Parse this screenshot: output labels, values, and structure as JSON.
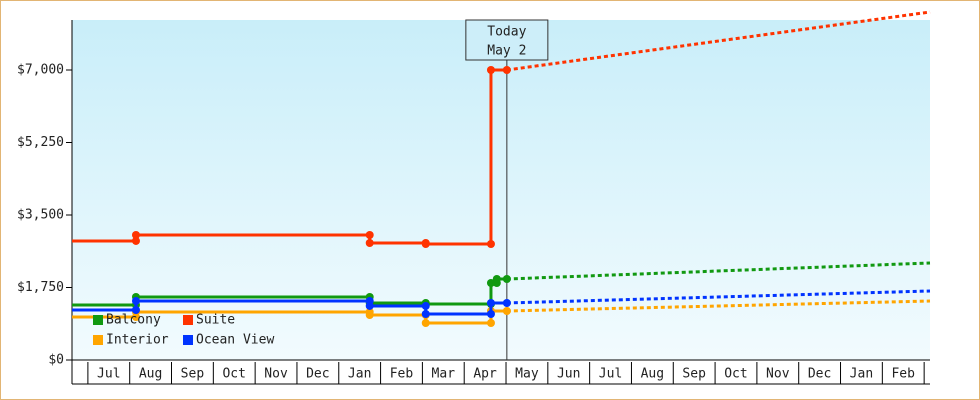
{
  "chart_data": {
    "type": "step-line",
    "xticks": [
      {
        "value": 0,
        "label": "Jul"
      },
      {
        "value": 1,
        "label": "Aug"
      },
      {
        "value": 2,
        "label": "Sep"
      },
      {
        "value": 3,
        "label": "Oct"
      },
      {
        "value": 4,
        "label": "Nov"
      },
      {
        "value": 5,
        "label": "Dec"
      },
      {
        "value": 6,
        "label": "Jan"
      },
      {
        "value": 7,
        "label": "Feb"
      },
      {
        "value": 8,
        "label": "Mar"
      },
      {
        "value": 9,
        "label": "Apr"
      },
      {
        "value": 10,
        "label": "May"
      },
      {
        "value": 11,
        "label": "Jun"
      },
      {
        "value": 12,
        "label": "Jul"
      },
      {
        "value": 13,
        "label": "Aug"
      },
      {
        "value": 14,
        "label": "Sep"
      },
      {
        "value": 15,
        "label": "Oct"
      },
      {
        "value": 16,
        "label": "Nov"
      },
      {
        "value": 17,
        "label": "Dec"
      },
      {
        "value": 18,
        "label": "Jan"
      },
      {
        "value": 19,
        "label": "Feb"
      }
    ],
    "xlim": [
      -0.88,
      19.64
    ],
    "ylim": [
      0,
      8207
    ],
    "yticks": [
      {
        "value": 0,
        "label": "$0"
      },
      {
        "value": 1750,
        "label": "$1,750"
      },
      {
        "value": 3500,
        "label": "$3,500"
      },
      {
        "value": 5250,
        "label": "$5,250"
      },
      {
        "value": 7000,
        "label": "$7,000"
      }
    ],
    "legend": "lower left",
    "annotation": {
      "lines": [
        "Today",
        "May 2"
      ],
      "x": 9.52
    },
    "series": [
      {
        "name": "Balcony",
        "color": "#119911",
        "x": [
          -0.88,
          0.65,
          0.65,
          6.24,
          6.24,
          7.58,
          7.58,
          9.14,
          9.14,
          9.28,
          9.28,
          9.52
        ],
        "values": [
          1328,
          1328,
          1521,
          1521,
          1376,
          1376,
          1352,
          1352,
          1859,
          1859,
          1955,
          1955
        ],
        "projection": {
          "x": [
            9.52,
            19.64
          ],
          "values": [
            1955,
            2342
          ]
        }
      },
      {
        "name": "Suite",
        "color": "#ff3300",
        "x": [
          -0.88,
          0.65,
          0.65,
          6.24,
          6.24,
          7.58,
          7.58,
          9.14,
          9.14,
          9.52
        ],
        "values": [
          2873,
          2873,
          3017,
          3017,
          2824,
          2824,
          2800,
          2800,
          7000,
          7000
        ],
        "projection": {
          "x": [
            9.52,
            19.64
          ],
          "values": [
            7000,
            8400
          ]
        }
      },
      {
        "name": "Interior",
        "color": "#ffa500",
        "x": [
          -0.88,
          0.65,
          0.65,
          6.24,
          6.24,
          7.58,
          7.58,
          9.14,
          9.14,
          9.52
        ],
        "values": [
          1038,
          1038,
          1159,
          1159,
          1086,
          1086,
          893,
          893,
          1183,
          1183
        ],
        "projection": {
          "x": [
            9.52,
            19.64
          ],
          "values": [
            1183,
            1424
          ]
        }
      },
      {
        "name": "Ocean View",
        "color": "#0033ff",
        "x": [
          -0.88,
          0.65,
          0.65,
          6.24,
          6.24,
          7.58,
          7.58,
          9.14,
          9.14,
          9.52
        ],
        "values": [
          1207,
          1207,
          1424,
          1424,
          1304,
          1304,
          1110,
          1110,
          1376,
          1376
        ],
        "projection": {
          "x": [
            9.52,
            19.64
          ],
          "values": [
            1376,
            1666
          ]
        }
      }
    ]
  }
}
